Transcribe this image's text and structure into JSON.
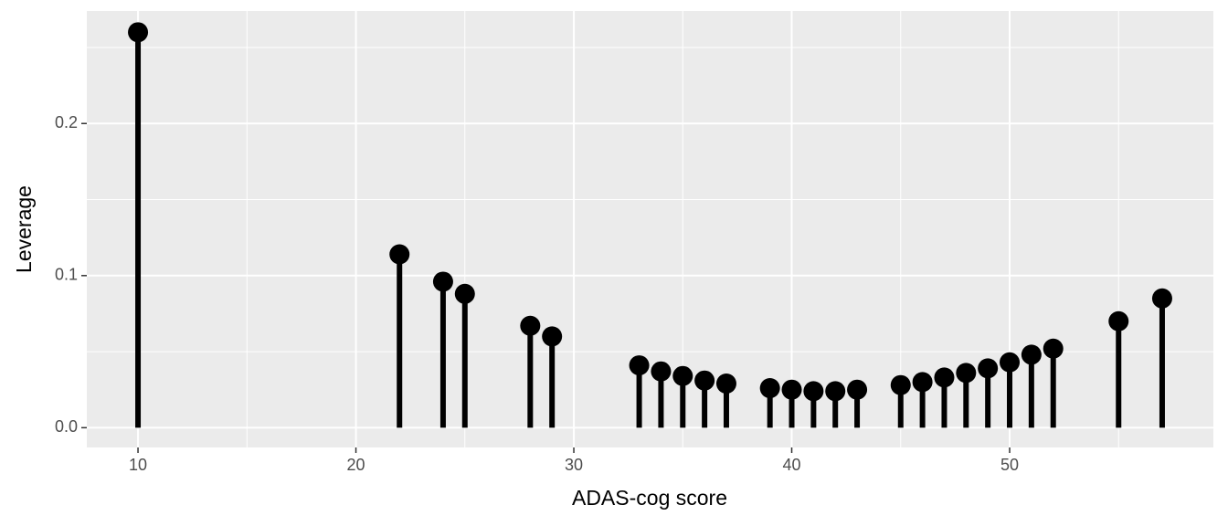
{
  "chart_data": {
    "type": "lollipop",
    "x_label": "ADAS-cog score",
    "y_label": "Leverage",
    "x": [
      10,
      22,
      24,
      25,
      28,
      29,
      33,
      34,
      35,
      36,
      37,
      39,
      40,
      41,
      42,
      43,
      45,
      46,
      47,
      48,
      49,
      50,
      51,
      52,
      55,
      57
    ],
    "values": [
      0.26,
      0.114,
      0.096,
      0.088,
      0.067,
      0.06,
      0.041,
      0.037,
      0.034,
      0.031,
      0.029,
      0.026,
      0.025,
      0.024,
      0.024,
      0.025,
      0.028,
      0.03,
      0.033,
      0.036,
      0.039,
      0.043,
      0.048,
      0.052,
      0.07,
      0.085
    ],
    "color": "#000000",
    "xlim": [
      7.65,
      59.35
    ],
    "ylim": [
      -0.013,
      0.274
    ],
    "xticks": [
      10,
      20,
      30,
      40,
      50
    ],
    "yticks": [
      {
        "value": 0,
        "label": "0.0"
      },
      0.1,
      0.2
    ],
    "minor_xticks": [
      15,
      25,
      35,
      45,
      55
    ],
    "minor_yticks": [
      0.05,
      0.15,
      0.25
    ],
    "grid": true
  }
}
